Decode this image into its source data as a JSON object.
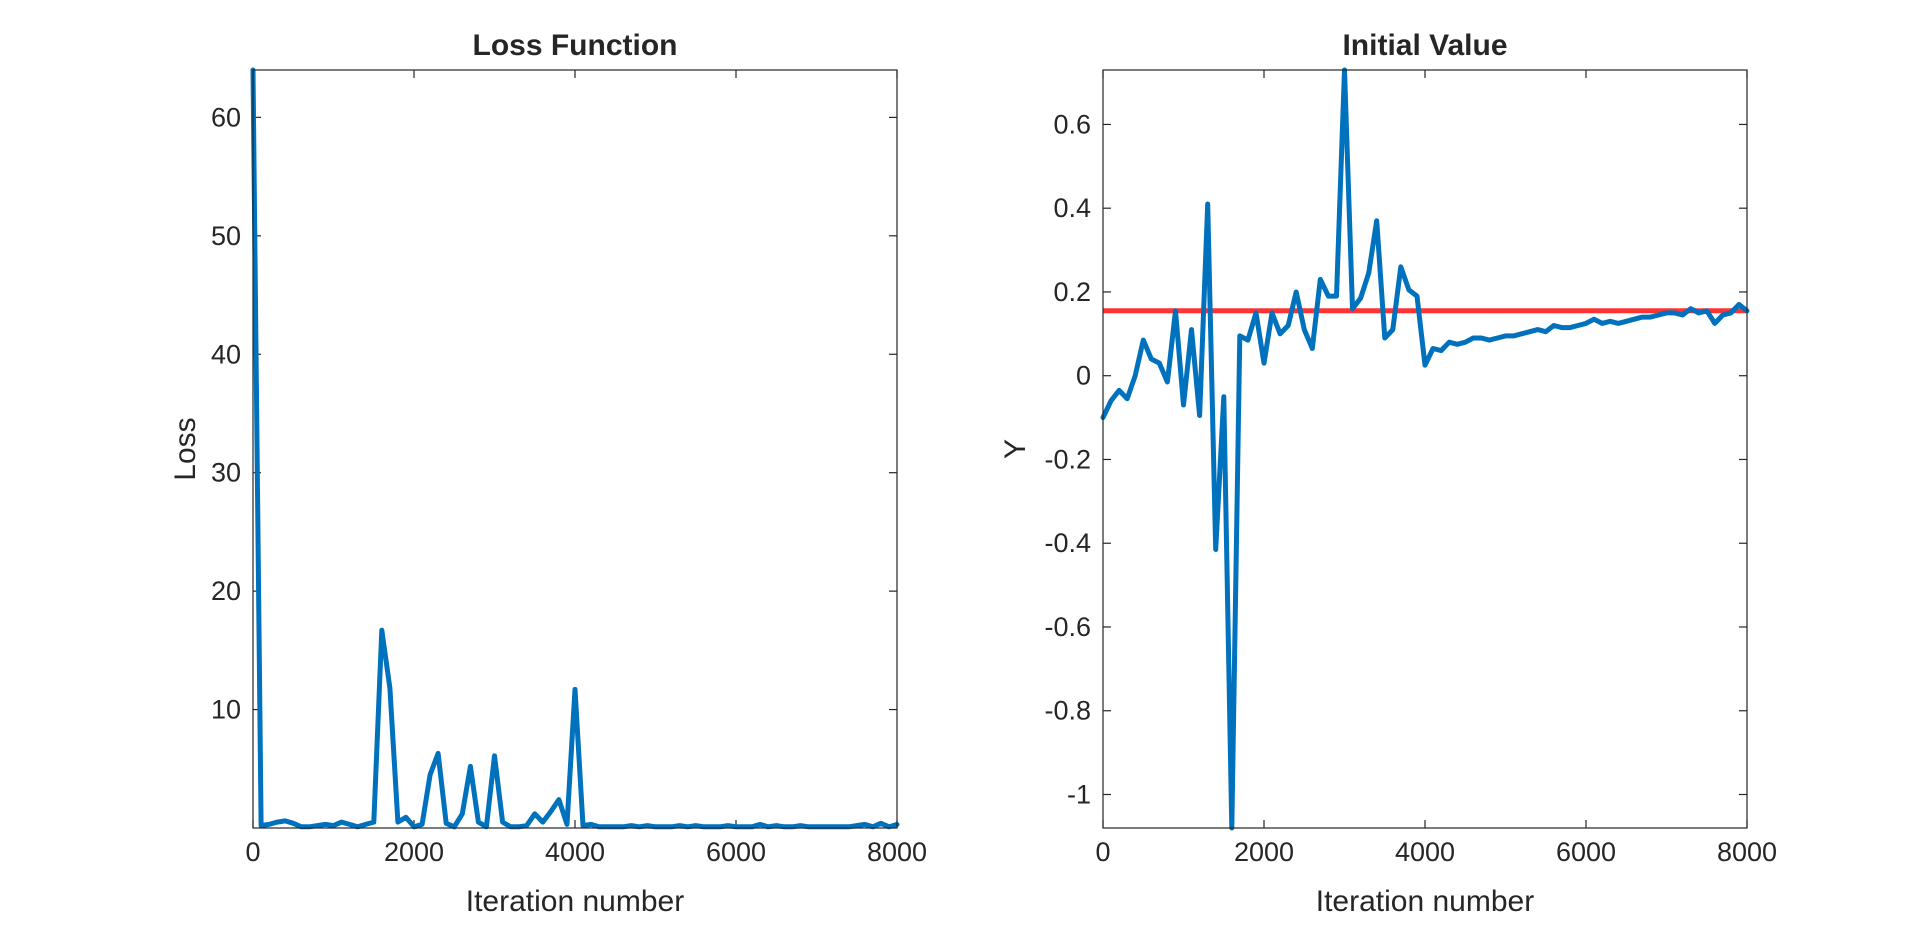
{
  "chart_data": [
    {
      "type": "line",
      "title": "Loss Function",
      "xlabel": "Iteration number",
      "ylabel": "Loss",
      "xlim": [
        0,
        8000
      ],
      "ylim": [
        0,
        64
      ],
      "x_ticks": [
        0,
        2000,
        4000,
        6000,
        8000
      ],
      "x_tick_labels": [
        "0",
        "2000",
        "4000",
        "6000",
        "8000"
      ],
      "y_ticks": [
        10,
        20,
        30,
        40,
        50,
        60
      ],
      "y_tick_labels": [
        "10",
        "20",
        "30",
        "40",
        "50",
        "60"
      ],
      "grid": false,
      "box": true,
      "series": [
        {
          "color": "#0072BD",
          "x": [
            0,
            100,
            200,
            300,
            400,
            500,
            600,
            700,
            800,
            900,
            1000,
            1100,
            1200,
            1300,
            1400,
            1500,
            1600,
            1700,
            1800,
            1900,
            2000,
            2100,
            2200,
            2300,
            2400,
            2500,
            2600,
            2700,
            2800,
            2900,
            3000,
            3100,
            3200,
            3300,
            3400,
            3500,
            3600,
            3700,
            3800,
            3900,
            4000,
            4100,
            4200,
            4300,
            4400,
            4500,
            4600,
            4700,
            4800,
            4900,
            5000,
            5100,
            5200,
            5300,
            5400,
            5500,
            5600,
            5700,
            5800,
            5900,
            6000,
            6100,
            6200,
            6300,
            6400,
            6500,
            6600,
            6700,
            6800,
            6900,
            7000,
            7100,
            7200,
            7300,
            7400,
            7500,
            7600,
            7700,
            7800,
            7900,
            8000
          ],
          "y": [
            64,
            0.2,
            0.3,
            0.5,
            0.6,
            0.4,
            0.1,
            0.1,
            0.2,
            0.3,
            0.2,
            0.5,
            0.3,
            0.1,
            0.3,
            0.5,
            16.7,
            11.8,
            0.5,
            0.9,
            0.1,
            0.3,
            4.5,
            6.3,
            0.4,
            0.1,
            1.2,
            5.2,
            0.5,
            0.1,
            6.1,
            0.5,
            0.1,
            0.1,
            0.2,
            1.2,
            0.5,
            1.4,
            2.4,
            0.3,
            11.7,
            0.2,
            0.3,
            0.1,
            0.1,
            0.1,
            0.1,
            0.2,
            0.1,
            0.2,
            0.1,
            0.1,
            0.1,
            0.2,
            0.1,
            0.2,
            0.1,
            0.1,
            0.1,
            0.2,
            0.1,
            0.1,
            0.1,
            0.3,
            0.1,
            0.2,
            0.1,
            0.1,
            0.2,
            0.1,
            0.1,
            0.1,
            0.1,
            0.1,
            0.1,
            0.2,
            0.3,
            0.1,
            0.4,
            0.1,
            0.3
          ]
        }
      ]
    },
    {
      "type": "line",
      "title": "Initial Value",
      "xlabel": "Iteration number",
      "ylabel": "Y",
      "xlim": [
        0,
        8000
      ],
      "ylim": [
        -1.08,
        0.73
      ],
      "x_ticks": [
        0,
        2000,
        4000,
        6000,
        8000
      ],
      "x_tick_labels": [
        "0",
        "2000",
        "4000",
        "6000",
        "8000"
      ],
      "y_ticks": [
        -1,
        -0.8,
        -0.6,
        -0.4,
        -0.2,
        0,
        0.2,
        0.4,
        0.6
      ],
      "y_tick_labels": [
        "-1",
        "-0.8",
        "-0.6",
        "-0.4",
        "-0.2",
        "0",
        "0.2",
        "0.4",
        "0.6"
      ],
      "grid": false,
      "box": true,
      "reference_line": {
        "y": 0.155,
        "color": "#FF3333"
      },
      "series": [
        {
          "color": "#0072BD",
          "x": [
            0,
            100,
            200,
            300,
            400,
            500,
            600,
            700,
            800,
            900,
            1000,
            1100,
            1200,
            1300,
            1400,
            1500,
            1600,
            1700,
            1800,
            1900,
            2000,
            2100,
            2200,
            2300,
            2400,
            2500,
            2600,
            2700,
            2800,
            2900,
            3000,
            3100,
            3200,
            3300,
            3400,
            3500,
            3600,
            3700,
            3800,
            3900,
            4000,
            4100,
            4200,
            4300,
            4400,
            4500,
            4600,
            4700,
            4800,
            4900,
            5000,
            5100,
            5200,
            5300,
            5400,
            5500,
            5600,
            5700,
            5800,
            5900,
            6000,
            6100,
            6200,
            6300,
            6400,
            6500,
            6600,
            6700,
            6800,
            6900,
            7000,
            7100,
            7200,
            7300,
            7400,
            7500,
            7600,
            7700,
            7800,
            7900,
            8000
          ],
          "y": [
            -0.1,
            -0.06,
            -0.035,
            -0.055,
            0.0,
            0.085,
            0.04,
            0.03,
            -0.015,
            0.155,
            -0.07,
            0.11,
            -0.095,
            0.41,
            -0.415,
            -0.05,
            -1.08,
            0.095,
            0.085,
            0.15,
            0.03,
            0.15,
            0.1,
            0.12,
            0.2,
            0.11,
            0.065,
            0.23,
            0.19,
            0.19,
            0.73,
            0.16,
            0.185,
            0.245,
            0.37,
            0.09,
            0.11,
            0.26,
            0.205,
            0.19,
            0.025,
            0.065,
            0.06,
            0.08,
            0.075,
            0.08,
            0.09,
            0.09,
            0.085,
            0.09,
            0.095,
            0.095,
            0.1,
            0.105,
            0.11,
            0.105,
            0.12,
            0.115,
            0.115,
            0.12,
            0.125,
            0.135,
            0.125,
            0.13,
            0.125,
            0.13,
            0.135,
            0.14,
            0.14,
            0.145,
            0.15,
            0.15,
            0.145,
            0.16,
            0.15,
            0.155,
            0.125,
            0.145,
            0.15,
            0.17,
            0.155
          ]
        }
      ]
    }
  ]
}
